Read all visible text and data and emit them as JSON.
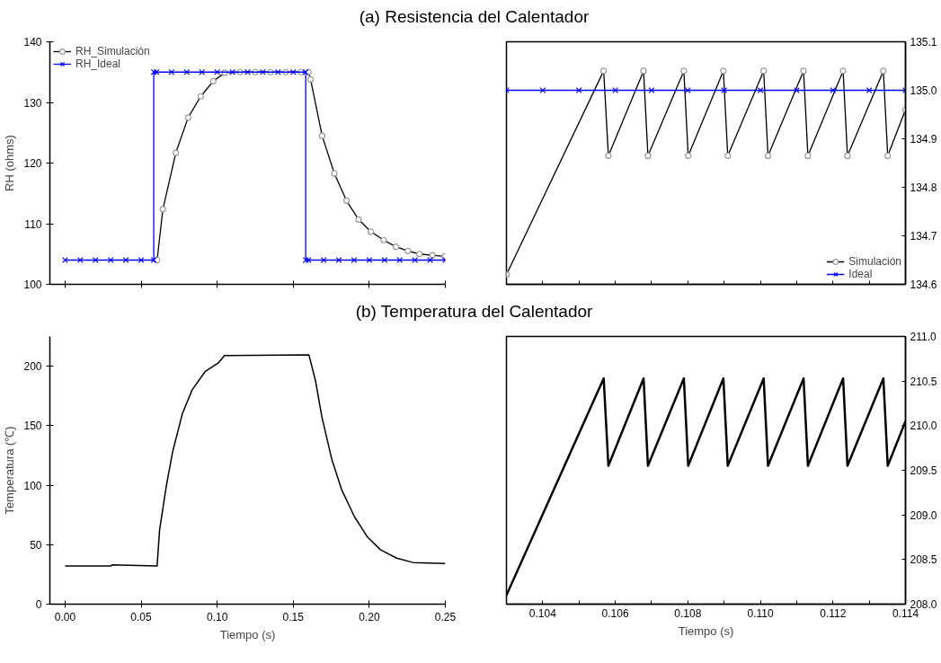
{
  "chart_data": [
    {
      "type": "line",
      "title": "(a) Resistencia del Calentador",
      "ylabel": "RH (ohms)",
      "xlim": [
        -0.01,
        0.25
      ],
      "xticks": [
        0,
        0.05,
        0.1,
        0.15,
        0.2,
        0.25
      ],
      "ylim": [
        100,
        140
      ],
      "yticks": [
        100,
        110,
        120,
        130,
        140
      ],
      "tick_labels": "y",
      "legend": "top left",
      "grid": false,
      "series": [
        {
          "name": "RH_Simulación",
          "color": "#000000",
          "marker": "circle",
          "x": [
            0.06,
            0.0605,
            0.0643,
            0.0728,
            0.0809,
            0.0892,
            0.0974,
            0.105,
            0.115,
            0.125,
            0.135,
            0.145,
            0.155,
            0.16,
            0.1614,
            0.169,
            0.177,
            0.185,
            0.193,
            0.201,
            0.2094,
            0.2175,
            0.2254,
            0.233,
            0.2415,
            0.2496
          ],
          "values": [
            104,
            104,
            112.4,
            121.7,
            127.5,
            131.0,
            133.5,
            134.9,
            135,
            135,
            135,
            135,
            135,
            135,
            133.8,
            124.5,
            118.3,
            113.8,
            110.7,
            108.7,
            107.3,
            106.2,
            105.5,
            105.0,
            104.8,
            104.6
          ]
        },
        {
          "name": "RH_Ideal",
          "color": "#0000ff",
          "marker": "cross",
          "x": [
            0,
            0.01,
            0.02,
            0.03,
            0.04,
            0.05,
            0.0583,
            0.0583,
            0.06,
            0.07,
            0.08,
            0.09,
            0.1,
            0.11,
            0.12,
            0.13,
            0.14,
            0.15,
            0.1582,
            0.1582,
            0.16,
            0.17,
            0.18,
            0.19,
            0.2,
            0.21,
            0.22,
            0.23,
            0.24,
            0.25
          ],
          "values": [
            104,
            104,
            104,
            104,
            104,
            104,
            104,
            135,
            135,
            135,
            135,
            135,
            135,
            135,
            135,
            135,
            135,
            135,
            135,
            104,
            104,
            104,
            104,
            104,
            104,
            104,
            104,
            104,
            104,
            104
          ]
        }
      ]
    },
    {
      "type": "line",
      "xlim": [
        0.103,
        0.114
      ],
      "xticks": [
        0.103,
        0.104,
        0.105,
        0.106,
        0.107,
        0.108,
        0.109,
        0.11,
        0.111,
        0.112,
        0.113,
        0.114
      ],
      "ylim": [
        134.6,
        135.1
      ],
      "yticks": [
        134.6,
        134.7,
        134.8,
        134.9,
        {
          "value": 135,
          "label": "135.0"
        },
        135.1
      ],
      "tick_labels": "y",
      "legend": "bottom right",
      "grid": false,
      "series": [
        {
          "name": "Simulación",
          "color": "#000000",
          "marker": "circle",
          "x": [
            0.103,
            0.10568,
            0.10581,
            0.10678,
            0.1069,
            0.10789,
            0.10801,
            0.10898,
            0.1091,
            0.11009,
            0.11021,
            0.11119,
            0.11131,
            0.11228,
            0.1124,
            0.11339,
            0.11351,
            0.114
          ],
          "values": [
            134.62,
            135.04,
            134.865,
            135.04,
            134.865,
            135.04,
            134.865,
            135.04,
            134.865,
            135.04,
            134.865,
            135.04,
            134.865,
            135.04,
            134.865,
            135.04,
            134.865,
            134.96
          ]
        },
        {
          "name": "Ideal",
          "color": "#0000ff",
          "marker": "cross",
          "x": [
            0.103,
            0.104,
            0.105,
            0.106,
            0.107,
            0.108,
            0.109,
            0.11,
            0.111,
            0.112,
            0.113,
            0.114
          ],
          "values": [
            135,
            135,
            135,
            135,
            135,
            135,
            135,
            135,
            135,
            135,
            135,
            135
          ]
        }
      ]
    },
    {
      "type": "line",
      "title": "(b) Temperatura del Calentador",
      "xlabel": "Tiempo (s)",
      "ylabel": "Temperatura (℃)",
      "xlim": [
        -0.01,
        0.25
      ],
      "xticks": [
        {
          "value": 0,
          "label": "0.00"
        },
        {
          "value": 0.05,
          "label": "0.05"
        },
        {
          "value": 0.1,
          "label": "0.10"
        },
        {
          "value": 0.15,
          "label": "0.15"
        },
        {
          "value": 0.2,
          "label": "0.20"
        },
        {
          "value": 0.25,
          "label": "0.25"
        }
      ],
      "ylim": [
        0,
        225
      ],
      "yticks": [
        0,
        50,
        100,
        150,
        200
      ],
      "grid": false,
      "series": [
        {
          "color": "#000000",
          "x": [
            0,
            0.03,
            0.031,
            0.06,
            0.0605,
            0.0621,
            0.0664,
            0.0707,
            0.0771,
            0.0835,
            0.092,
            0.1006,
            0.1048,
            0.16,
            0.1603,
            0.1646,
            0.1689,
            0.1753,
            0.1817,
            0.1902,
            0.1988,
            0.2073,
            0.218,
            0.2287,
            0.25
          ],
          "values": [
            32,
            32,
            33,
            32,
            32,
            62,
            98,
            128,
            160,
            180,
            195.4,
            202.6,
            209,
            209.6,
            209.6,
            188,
            157,
            122,
            96.6,
            73.6,
            56.4,
            45.8,
            38.7,
            35,
            34.1
          ]
        }
      ]
    },
    {
      "type": "line",
      "xlabel": "Tiempo (s)",
      "xlim": [
        0.103,
        0.114
      ],
      "xticks": [
        {
          "value": 0.103,
          "label": null
        },
        0.104,
        {
          "value": 0.105,
          "label": null
        },
        0.106,
        {
          "value": 0.107,
          "label": null
        },
        0.108,
        {
          "value": 0.109,
          "label": null
        },
        {
          "value": 0.11,
          "label": "0.110"
        },
        {
          "value": 0.111,
          "label": null
        },
        0.112,
        {
          "value": 0.113,
          "label": null
        },
        0.114
      ],
      "ylim": [
        208,
        211
      ],
      "yticks": [
        {
          "value": 208,
          "label": "208.0"
        },
        208.5,
        {
          "value": 209,
          "label": "209.0"
        },
        209.5,
        {
          "value": 210,
          "label": "210.0"
        },
        210.5,
        {
          "value": 211,
          "label": "211.0"
        }
      ],
      "grid": false,
      "series": [
        {
          "color": "#000000",
          "x": [
            0.103,
            0.10568,
            0.10581,
            0.10678,
            0.1069,
            0.10789,
            0.10801,
            0.10898,
            0.1091,
            0.11009,
            0.11021,
            0.11119,
            0.11131,
            0.11228,
            0.1124,
            0.11339,
            0.11351,
            0.114
          ],
          "values": [
            208.1,
            210.53,
            209.55,
            210.53,
            209.55,
            210.53,
            209.55,
            210.53,
            209.55,
            210.53,
            209.55,
            210.53,
            209.55,
            210.53,
            209.55,
            210.53,
            209.55,
            210.05
          ]
        }
      ]
    }
  ]
}
